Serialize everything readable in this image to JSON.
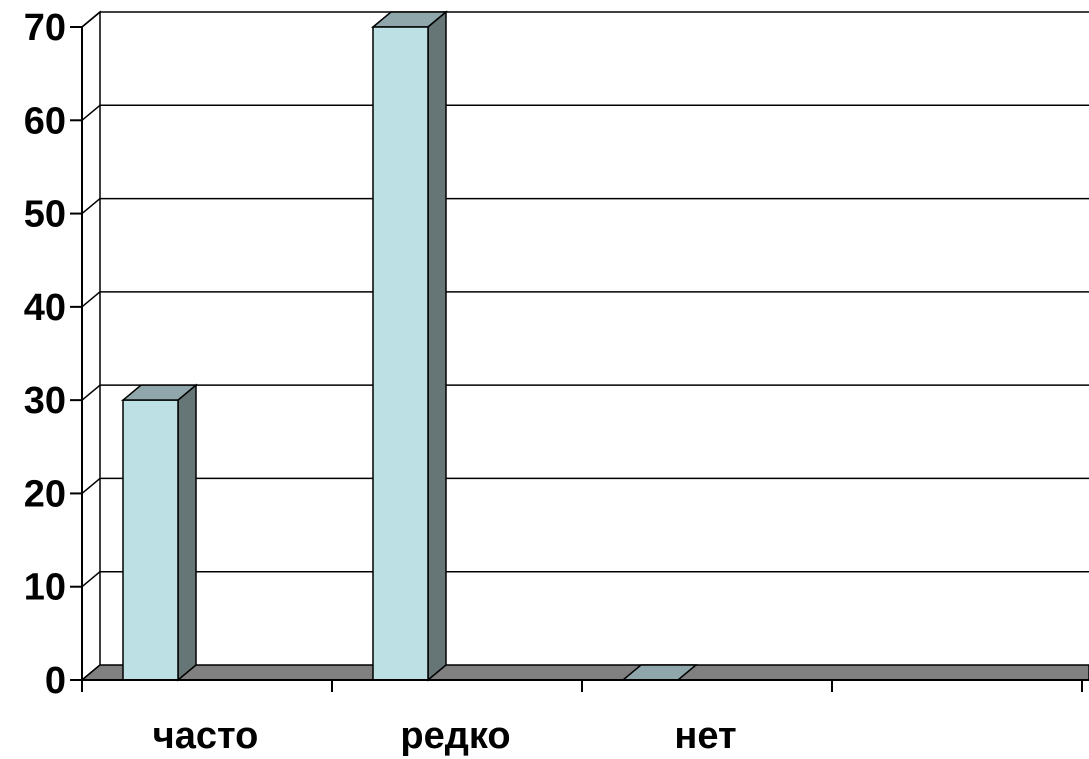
{
  "chart_data": {
    "type": "bar",
    "style": "3d-column",
    "categories": [
      "часто",
      "редко",
      "нет"
    ],
    "values": [
      30,
      70,
      0
    ],
    "ylim": [
      0,
      70
    ],
    "yticks": [
      "0",
      "10",
      "20",
      "30",
      "40",
      "50",
      "60",
      "70"
    ],
    "grid": true,
    "legend": "none",
    "colors": {
      "bar_front": "#bde0e4",
      "bar_side": "#667576",
      "bar_top": "#8fa6aa",
      "floor": "#808080",
      "wall": "#ffffff",
      "gridline": "#000000"
    }
  }
}
